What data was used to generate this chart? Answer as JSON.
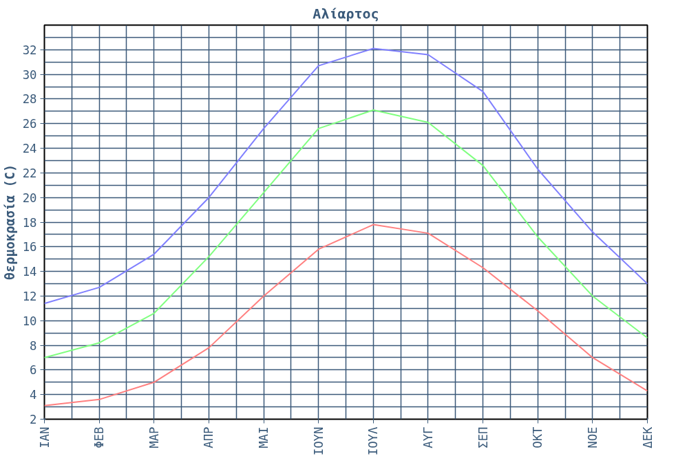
{
  "chart_data": {
    "type": "line",
    "title": "Αλίαρτος",
    "ylabel": "θερμοκρασία (C)",
    "categories": [
      "ΙΑΝ",
      "ΦΕΒ",
      "ΜΑΡ",
      "ΑΠΡ",
      "ΜΑΙ",
      "ΙΟΥΝ",
      "ΙΟΥΛ",
      "ΑΥΓ",
      "ΣΕΠ",
      "ΟΚΤ",
      "ΝΟΕ",
      "ΔΕΚ"
    ],
    "series": [
      {
        "color": "#8080ff",
        "values": [
          11.4,
          12.7,
          15.4,
          20.0,
          25.6,
          30.7,
          32.1,
          31.6,
          28.6,
          22.3,
          17.2,
          13.0
        ]
      },
      {
        "color": "#80ff80",
        "values": [
          7.0,
          8.2,
          10.6,
          15.2,
          20.4,
          25.6,
          27.1,
          26.1,
          22.6,
          16.8,
          12.0,
          8.6
        ]
      },
      {
        "color": "#ff8080",
        "values": [
          3.1,
          3.6,
          5.0,
          7.8,
          12.0,
          15.8,
          17.8,
          17.1,
          14.3,
          10.8,
          7.0,
          4.3
        ]
      }
    ],
    "ylim": [
      2,
      34
    ],
    "yticks": [
      2,
      4,
      6,
      8,
      10,
      12,
      14,
      16,
      18,
      20,
      22,
      24,
      26,
      28,
      30,
      32
    ],
    "grid": true,
    "marker": "none",
    "line_style": "solid"
  }
}
